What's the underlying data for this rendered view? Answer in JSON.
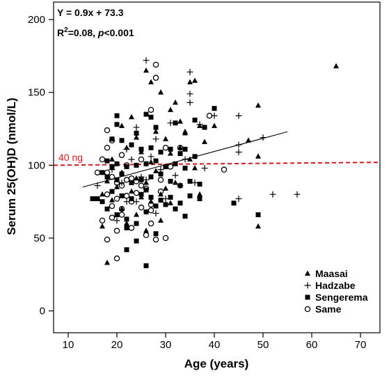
{
  "chart_data": {
    "type": "scatter",
    "xlabel": "Age (years)",
    "ylabel": "Serum 25(OH)D (nmol/L)",
    "xlim": [
      7,
      74
    ],
    "ylim": [
      -15,
      212
    ],
    "xticks": [
      10,
      20,
      30,
      40,
      50,
      60,
      70
    ],
    "yticks": [
      0,
      50,
      100,
      150,
      200
    ],
    "grid": false,
    "legend_position": "bottom-right",
    "colors": {
      "points": "#000000",
      "reference_line": "#d71920",
      "regression_line": "#000000"
    },
    "annotations": {
      "equation": "Y = 0.9x + 73.3",
      "r2_prefix": "R",
      "r2_sup": "2",
      "r2_mid": "=0.08, ",
      "p_italic": "p",
      "p_rest": "<0.001"
    },
    "reference_line": {
      "label": "40 ng",
      "x": [
        7,
        74
      ],
      "y": [
        100,
        102
      ]
    },
    "regression_line": {
      "x": [
        13,
        55
      ],
      "y": [
        85,
        123
      ]
    },
    "series": [
      {
        "name": "Maasai",
        "marker": "triangle",
        "points": [
          [
            18,
            33
          ],
          [
            65,
            168
          ],
          [
            49,
            141
          ],
          [
            47,
            117
          ],
          [
            49,
            106
          ],
          [
            49,
            58
          ],
          [
            17,
            58
          ],
          [
            26,
            165
          ],
          [
            27,
            157
          ],
          [
            29,
            150
          ],
          [
            32,
            143
          ],
          [
            35,
            157
          ],
          [
            36,
            158
          ],
          [
            31,
            138
          ],
          [
            33,
            130
          ],
          [
            37,
            127
          ],
          [
            23,
            133
          ],
          [
            21,
            127
          ],
          [
            24,
            119
          ],
          [
            28,
            123
          ],
          [
            30,
            118
          ],
          [
            34,
            123
          ],
          [
            38,
            116
          ],
          [
            40,
            127
          ],
          [
            22,
            112
          ],
          [
            25,
            109
          ],
          [
            27,
            102
          ],
          [
            31,
            108
          ],
          [
            33,
            112
          ],
          [
            35,
            104
          ],
          [
            36,
            98
          ],
          [
            19,
            104
          ],
          [
            21,
            95
          ],
          [
            24,
            91
          ],
          [
            26,
            88
          ],
          [
            28,
            96
          ],
          [
            30,
            84
          ],
          [
            32,
            88
          ],
          [
            23,
            82
          ],
          [
            25,
            78
          ],
          [
            27,
            75
          ],
          [
            29,
            80
          ],
          [
            21,
            70
          ],
          [
            24,
            66
          ],
          [
            18,
            89
          ],
          [
            20,
            85
          ],
          [
            22,
            60
          ],
          [
            26,
            55
          ],
          [
            29,
            62
          ],
          [
            31,
            74
          ],
          [
            34,
            122
          ],
          [
            37,
            80
          ],
          [
            17,
            80
          ],
          [
            19,
            76
          ]
        ]
      },
      {
        "name": "Hadzabe",
        "marker": "plus",
        "points": [
          [
            26,
            172
          ],
          [
            35,
            164
          ],
          [
            35,
            149
          ],
          [
            35,
            143
          ],
          [
            40,
            134
          ],
          [
            45,
            134
          ],
          [
            28,
            118
          ],
          [
            24,
            126
          ],
          [
            37,
            128
          ],
          [
            31,
            129
          ],
          [
            50,
            119
          ],
          [
            45,
            114
          ],
          [
            45,
            109
          ],
          [
            52,
            80
          ],
          [
            57,
            80
          ],
          [
            45,
            77
          ],
          [
            38,
            98
          ],
          [
            22,
            111
          ],
          [
            23,
            104
          ],
          [
            27,
            106
          ],
          [
            25,
            92
          ],
          [
            29,
            97
          ],
          [
            34,
            104
          ],
          [
            16,
            86
          ],
          [
            19,
            97
          ],
          [
            21,
            88
          ],
          [
            26,
            90
          ],
          [
            32,
            93
          ],
          [
            30,
            77
          ],
          [
            24,
            75
          ],
          [
            20,
            62
          ],
          [
            28,
            67
          ],
          [
            33,
            86
          ],
          [
            36,
            88
          ],
          [
            22,
            75
          ]
        ]
      },
      {
        "name": "Sengerema",
        "marker": "square",
        "points": [
          [
            26,
            31
          ],
          [
            22,
            42
          ],
          [
            49,
            66
          ],
          [
            44,
            74
          ],
          [
            40,
            139
          ],
          [
            20,
            134
          ],
          [
            26,
            135
          ],
          [
            27,
            133
          ],
          [
            20,
            128
          ],
          [
            24,
            122
          ],
          [
            28,
            126
          ],
          [
            32,
            129
          ],
          [
            36,
            131
          ],
          [
            38,
            126
          ],
          [
            19,
            118
          ],
          [
            21,
            117
          ],
          [
            23,
            114
          ],
          [
            25,
            111
          ],
          [
            27,
            112
          ],
          [
            29,
            109
          ],
          [
            31,
            111
          ],
          [
            33,
            108
          ],
          [
            34,
            111
          ],
          [
            36,
            106
          ],
          [
            18,
            103
          ],
          [
            19,
            99
          ],
          [
            20,
            101
          ],
          [
            22,
            99
          ],
          [
            24,
            100
          ],
          [
            26,
            101
          ],
          [
            28,
            103
          ],
          [
            30,
            99
          ],
          [
            32,
            101
          ],
          [
            34,
            98
          ],
          [
            17,
            95
          ],
          [
            18,
            92
          ],
          [
            20,
            90
          ],
          [
            21,
            94
          ],
          [
            23,
            88
          ],
          [
            25,
            90
          ],
          [
            27,
            92
          ],
          [
            29,
            94
          ],
          [
            31,
            89
          ],
          [
            33,
            86
          ],
          [
            35,
            89
          ],
          [
            37,
            87
          ],
          [
            16,
            77
          ],
          [
            17,
            75
          ],
          [
            19,
            82
          ],
          [
            21,
            79
          ],
          [
            23,
            77
          ],
          [
            25,
            80
          ],
          [
            27,
            78
          ],
          [
            29,
            76
          ],
          [
            31,
            78
          ],
          [
            33,
            74
          ],
          [
            35,
            79
          ],
          [
            37,
            77
          ],
          [
            18,
            70
          ],
          [
            20,
            66
          ],
          [
            22,
            63
          ],
          [
            24,
            60
          ],
          [
            26,
            68
          ],
          [
            28,
            72
          ],
          [
            30,
            73
          ],
          [
            32,
            70
          ],
          [
            34,
            65
          ],
          [
            15,
            77
          ],
          [
            24,
            48
          ],
          [
            28,
            53
          ],
          [
            22,
            57
          ],
          [
            26,
            83
          ]
        ]
      },
      {
        "name": "Same",
        "marker": "circle",
        "points": [
          [
            28,
            169
          ],
          [
            28,
            160
          ],
          [
            27,
            138
          ],
          [
            39,
            134
          ],
          [
            18,
            124
          ],
          [
            19,
            117
          ],
          [
            18,
            112
          ],
          [
            21,
            107
          ],
          [
            30,
            112
          ],
          [
            33,
            112
          ],
          [
            42,
            97
          ],
          [
            18,
            95
          ],
          [
            19,
            92
          ],
          [
            20,
            88
          ],
          [
            21,
            86
          ],
          [
            22,
            90
          ],
          [
            23,
            91
          ],
          [
            24,
            89
          ],
          [
            25,
            86
          ],
          [
            26,
            84
          ],
          [
            18,
            80
          ],
          [
            20,
            77
          ],
          [
            22,
            79
          ],
          [
            23,
            75
          ],
          [
            25,
            71
          ],
          [
            27,
            69
          ],
          [
            19,
            72
          ],
          [
            21,
            70
          ],
          [
            17,
            62
          ],
          [
            19,
            64
          ],
          [
            21,
            66
          ],
          [
            23,
            57
          ],
          [
            26,
            52
          ],
          [
            18,
            49
          ],
          [
            28,
            49
          ],
          [
            30,
            50
          ],
          [
            20,
            36
          ],
          [
            27,
            73
          ],
          [
            16,
            95
          ],
          [
            20,
            55
          ],
          [
            24,
            81
          ],
          [
            22,
            100
          ],
          [
            25,
            104
          ],
          [
            29,
            90
          ],
          [
            31,
            99
          ],
          [
            17,
            104
          ],
          [
            29,
            82
          ],
          [
            27,
            60
          ]
        ]
      }
    ]
  }
}
